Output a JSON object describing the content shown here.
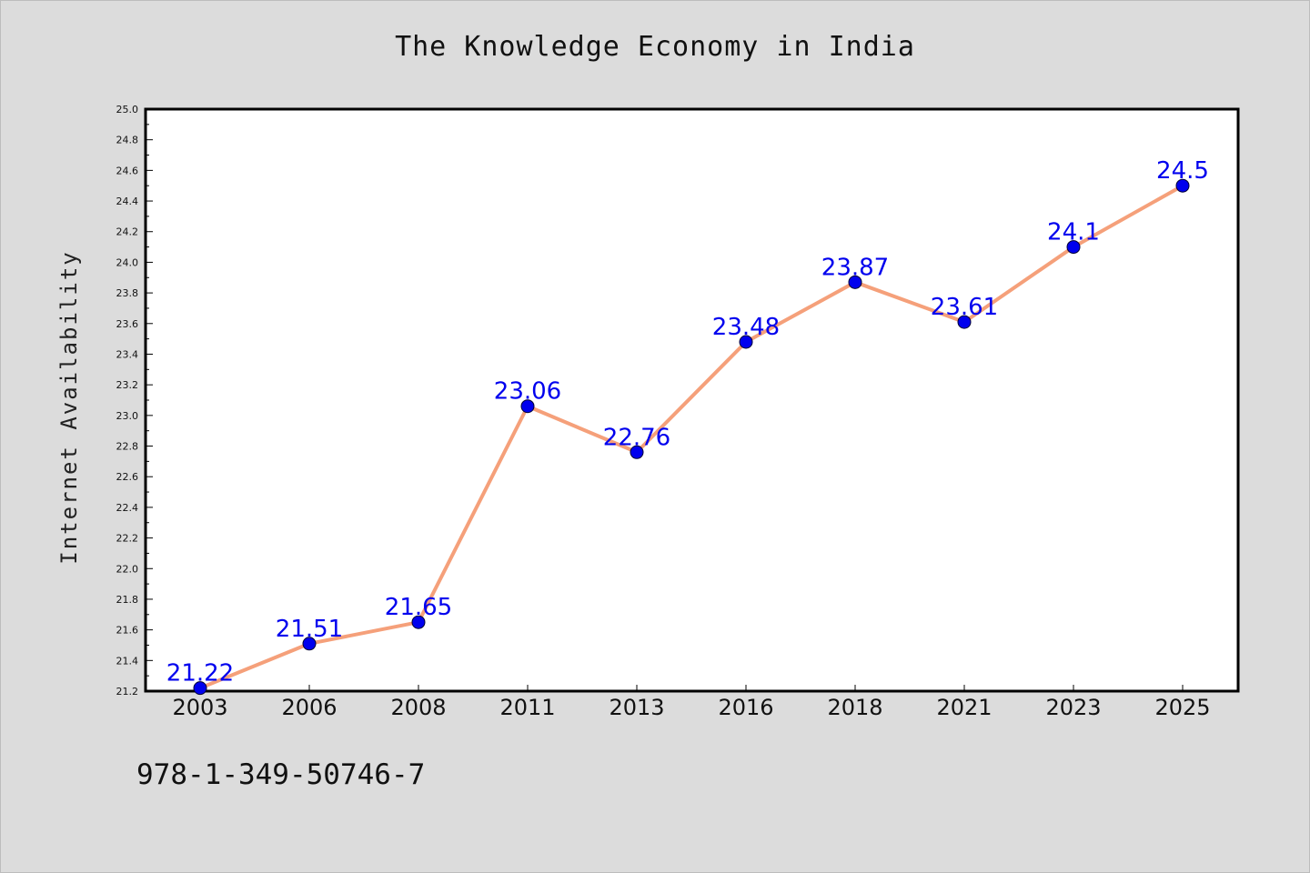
{
  "page": {
    "footer_text": "978-1-349-50746-7"
  },
  "colors": {
    "background": "#dcdcdc",
    "plot_background": "#ffffff",
    "line": "#f5a07a",
    "marker": "#0000ee",
    "label": "#0000ee"
  },
  "chart_data": {
    "type": "line",
    "title": "The Knowledge Economy in India",
    "xlabel": "",
    "ylabel": "Internet Availability",
    "categories": [
      "2003",
      "2006",
      "2008",
      "2011",
      "2013",
      "2016",
      "2018",
      "2021",
      "2023",
      "2025"
    ],
    "series": [
      {
        "values": [
          21.22,
          21.51,
          21.65,
          23.06,
          22.76,
          23.48,
          23.87,
          23.61,
          24.1,
          24.5
        ],
        "labels": [
          "21.22",
          "21.51",
          "21.65",
          "23.06",
          "22.76",
          "23.48",
          "23.87",
          "23.61",
          "24.1",
          "24.5"
        ]
      }
    ],
    "ylim": [
      21.2,
      25.0
    ],
    "ytick_step": 0.2,
    "ytick_labels": [
      "21.2",
      "21.4",
      "21.6",
      "21.8",
      "22.0",
      "22.2",
      "22.4",
      "22.6",
      "22.8",
      "23.0",
      "23.2",
      "23.4",
      "23.6",
      "23.8",
      "24.0",
      "24.2",
      "24.4",
      "24.6",
      "24.8",
      "25.0"
    ],
    "grid": false,
    "legend": "none"
  }
}
